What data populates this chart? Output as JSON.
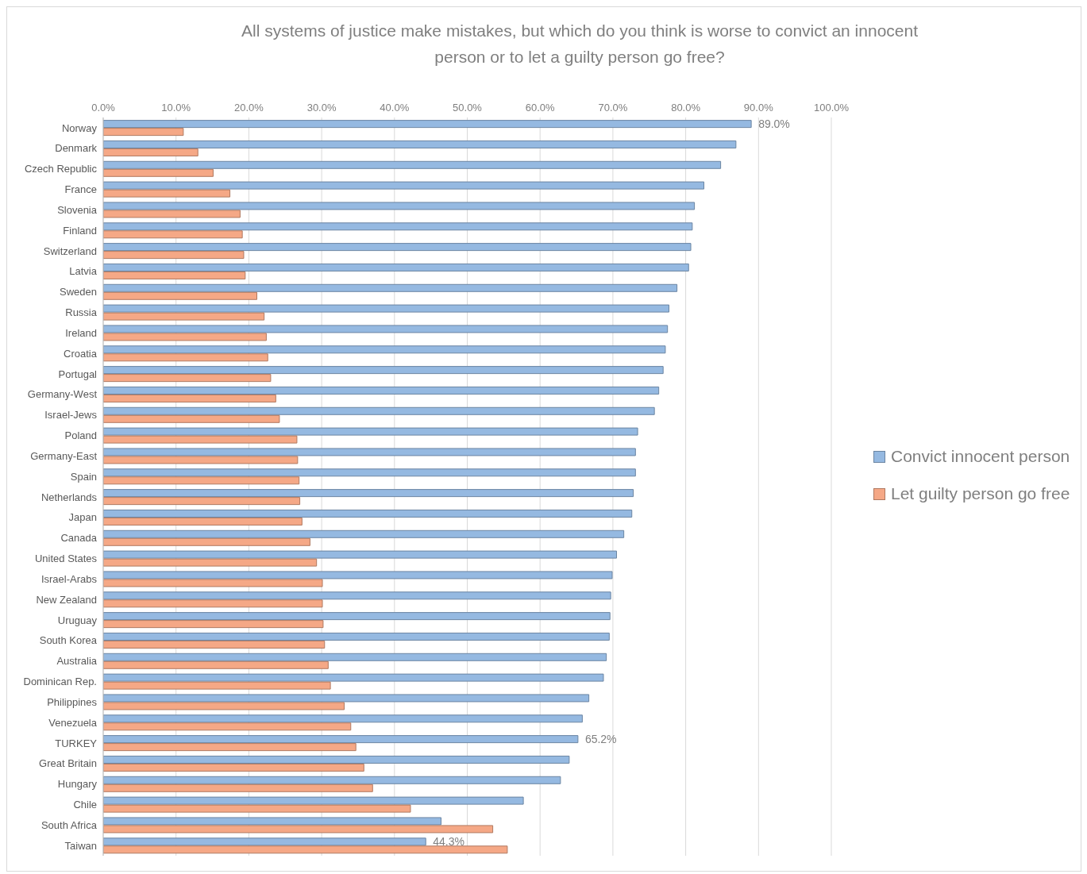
{
  "chart_data": {
    "type": "bar",
    "orientation": "horizontal",
    "title": "All systems of justice make mistakes, but which do you think is worse to convict an innocent person or to let a guilty person go free?",
    "categories": [
      "Norway",
      "Denmark",
      "Czech Republic",
      "France",
      "Slovenia",
      "Finland",
      "Switzerland",
      "Latvia",
      "Sweden",
      "Russia",
      "Ireland",
      "Croatia",
      "Portugal",
      "Germany-West",
      "Israel-Jews",
      "Poland",
      "Germany-East",
      "Spain",
      "Netherlands",
      "Japan",
      "Canada",
      "United States",
      "Israel-Arabs",
      "New Zealand",
      "Uruguay",
      "South Korea",
      "Australia",
      "Dominican Rep.",
      "Philippines",
      "Venezuela",
      "TURKEY",
      "Great Britain",
      "Hungary",
      "Chile",
      "South Africa",
      "Taiwan"
    ],
    "series": [
      {
        "name": "Convict innocent person",
        "color": "#95b9e1",
        "values": [
          89.0,
          86.9,
          84.8,
          82.5,
          81.2,
          80.9,
          80.7,
          80.4,
          78.8,
          77.7,
          77.5,
          77.2,
          76.9,
          76.3,
          75.7,
          73.4,
          73.1,
          73.1,
          72.8,
          72.6,
          71.5,
          70.5,
          69.9,
          69.7,
          69.6,
          69.5,
          69.1,
          68.7,
          66.7,
          65.8,
          65.2,
          64.0,
          62.8,
          57.7,
          46.4,
          44.3
        ],
        "value_labels": [
          "89.0%",
          null,
          null,
          null,
          null,
          null,
          null,
          null,
          null,
          null,
          null,
          null,
          null,
          null,
          null,
          null,
          null,
          null,
          null,
          null,
          null,
          null,
          null,
          null,
          null,
          null,
          null,
          null,
          null,
          null,
          "65.2%",
          null,
          null,
          null,
          null,
          "44.3%"
        ]
      },
      {
        "name": "Let guilty person go free",
        "color": "#f5a886",
        "values": [
          11.0,
          13.0,
          15.1,
          17.4,
          18.8,
          19.1,
          19.3,
          19.5,
          21.1,
          22.1,
          22.4,
          22.6,
          23.0,
          23.7,
          24.2,
          26.6,
          26.7,
          26.9,
          27.0,
          27.3,
          28.4,
          29.3,
          30.1,
          30.1,
          30.2,
          30.4,
          30.9,
          31.2,
          33.1,
          34.0,
          34.7,
          35.8,
          37.0,
          42.2,
          53.5,
          55.5
        ]
      }
    ],
    "xlim": [
      0,
      100
    ],
    "xticks": [
      {
        "value": 0,
        "label": "0.0%"
      },
      {
        "value": 10,
        "label": "10.0%"
      },
      {
        "value": 20,
        "label": "20.0%"
      },
      {
        "value": 30,
        "label": "30.0%"
      },
      {
        "value": 40,
        "label": "40.0%"
      },
      {
        "value": 50,
        "label": "50.0%"
      },
      {
        "value": 60,
        "label": "60.0%"
      },
      {
        "value": 70,
        "label": "70.0%"
      },
      {
        "value": 80,
        "label": "80.0%"
      },
      {
        "value": 90,
        "label": "90.0%"
      },
      {
        "value": 100,
        "label": "100.0%"
      }
    ],
    "grid": "x",
    "legend": "right"
  }
}
